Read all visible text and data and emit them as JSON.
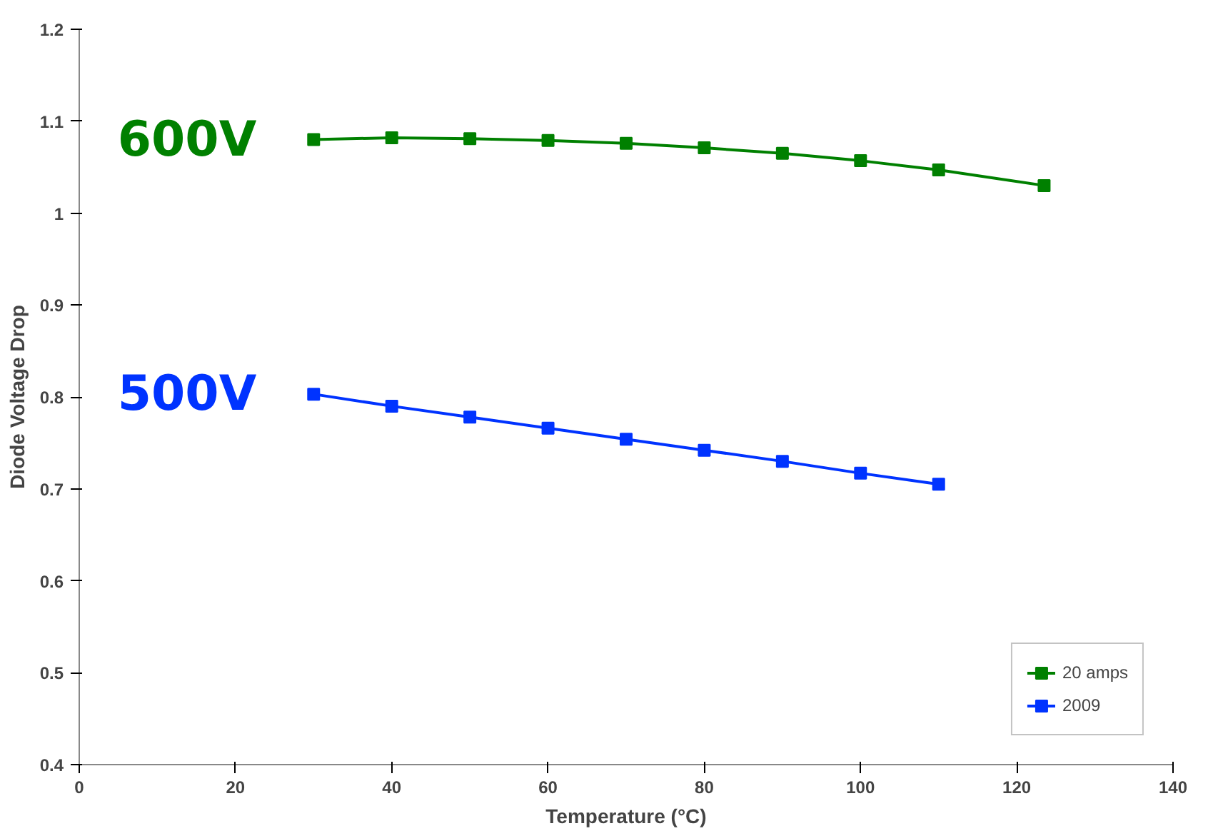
{
  "chart_data": {
    "type": "line",
    "xlabel": "Temperature (°C)",
    "ylabel": "Diode Voltage Drop",
    "xlim": [
      0,
      140
    ],
    "xticks": [
      0,
      20,
      40,
      60,
      80,
      100,
      120,
      140
    ],
    "ylim": [
      0.4,
      1.2
    ],
    "yticks": [
      {
        "value": 0.4,
        "label": "0.4"
      },
      {
        "value": 0.5,
        "label": "0.5"
      },
      {
        "value": 0.6,
        "label": "0.6"
      },
      {
        "value": 0.7,
        "label": "0.7"
      },
      {
        "value": 0.8,
        "label": "0.8"
      },
      {
        "value": 0.9,
        "label": "0.9"
      },
      {
        "value": 1,
        "label": "1"
      },
      {
        "value": 1.1,
        "label": "1.1"
      },
      {
        "value": 1.2,
        "label": "1.2"
      }
    ],
    "series": [
      {
        "name": "20 amps",
        "color": "#008000",
        "x": [
          30,
          40,
          50,
          60,
          70,
          80,
          90,
          100,
          110,
          123.5
        ],
        "values": [
          1.08,
          1.082,
          1.081,
          1.079,
          1.076,
          1.071,
          1.065,
          1.057,
          1.047,
          1.03
        ]
      },
      {
        "name": "2009",
        "color": "#0033ff",
        "x": [
          30,
          40,
          50,
          60,
          70,
          80,
          90,
          100,
          110
        ],
        "values": [
          0.803,
          0.79,
          0.778,
          0.766,
          0.754,
          0.742,
          0.73,
          0.717,
          0.705
        ]
      }
    ],
    "annotations": [
      "600V",
      "500V"
    ],
    "marker": "square",
    "line_style": "solid",
    "grid": false,
    "legend": "bottom right"
  }
}
